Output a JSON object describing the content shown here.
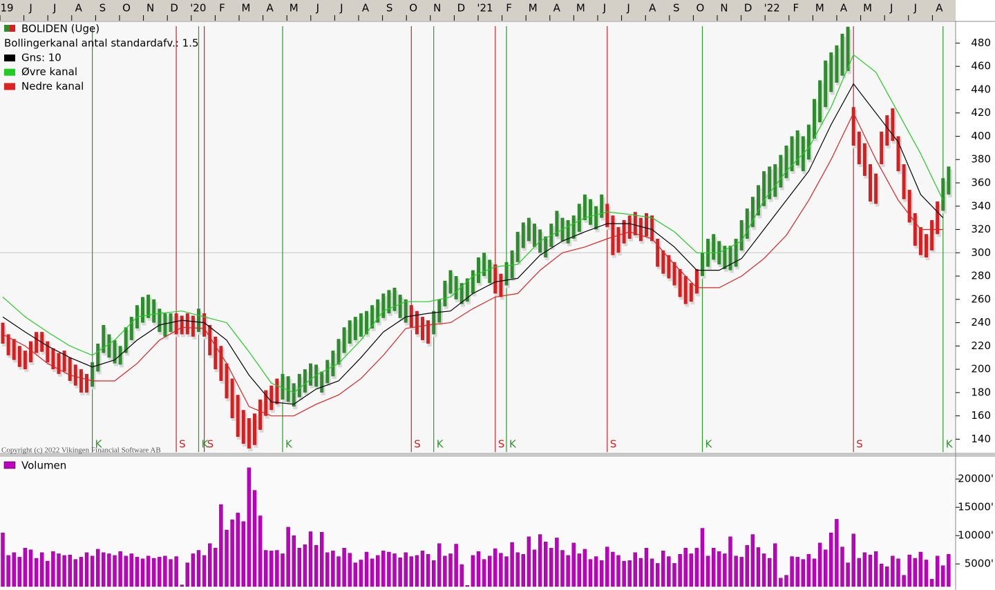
{
  "chart_data": [
    {
      "type": "hilo",
      "title": "BOLIDEN (Uge)",
      "subtitle": "Bollingerkanal antal standardafv.: 1.5",
      "copyright": "Copyright (c) 2022 Vikingen Financial Software AB",
      "x_labels": [
        "19",
        "J",
        "J",
        "A",
        "S",
        "O",
        "N",
        "D",
        "'20",
        "F",
        "M",
        "A",
        "M",
        "J",
        "J",
        "A",
        "S",
        "O",
        "N",
        "D",
        "'21",
        "F",
        "M",
        "A",
        "M",
        "J",
        "J",
        "A",
        "S",
        "O",
        "N",
        "D",
        "'22",
        "F",
        "M",
        "A",
        "M",
        "J",
        "J",
        "A"
      ],
      "up_color": "#2e8b2e",
      "down_color": "#d42020",
      "ylim": [
        129,
        498
      ],
      "yticks": [
        140,
        160,
        180,
        200,
        220,
        240,
        260,
        280,
        300,
        320,
        340,
        360,
        380,
        400,
        420,
        440,
        460,
        480
      ],
      "ref_line": 300,
      "bars": [
        [
          222,
          240
        ],
        [
          212,
          230
        ],
        [
          208,
          226
        ],
        [
          202,
          220
        ],
        [
          200,
          216
        ],
        [
          206,
          224
        ],
        [
          214,
          232
        ],
        [
          215,
          232
        ],
        [
          206,
          224
        ],
        [
          200,
          218
        ],
        [
          196,
          214
        ],
        [
          198,
          216
        ],
        [
          190,
          210
        ],
        [
          186,
          204
        ],
        [
          180,
          200
        ],
        [
          180,
          196
        ],
        [
          185,
          206
        ],
        [
          198,
          222
        ],
        [
          214,
          238
        ],
        [
          210,
          230
        ],
        [
          205,
          225
        ],
        [
          204,
          220
        ],
        [
          214,
          236
        ],
        [
          225,
          245
        ],
        [
          235,
          255
        ],
        [
          240,
          262
        ],
        [
          244,
          264
        ],
        [
          240,
          260
        ],
        [
          232,
          252
        ],
        [
          228,
          248
        ],
        [
          232,
          248
        ],
        [
          230,
          248
        ],
        [
          230,
          246
        ],
        [
          230,
          248
        ],
        [
          228,
          246
        ],
        [
          232,
          252
        ],
        [
          228,
          248
        ],
        [
          212,
          238
        ],
        [
          200,
          228
        ],
        [
          190,
          220
        ],
        [
          175,
          205
        ],
        [
          158,
          192
        ],
        [
          142,
          178
        ],
        [
          136,
          165
        ],
        [
          132,
          158
        ],
        [
          135,
          162
        ],
        [
          148,
          174
        ],
        [
          160,
          182
        ],
        [
          165,
          186
        ],
        [
          170,
          192
        ],
        [
          174,
          196
        ],
        [
          172,
          194
        ],
        [
          168,
          188
        ],
        [
          176,
          196
        ],
        [
          180,
          200
        ],
        [
          186,
          205
        ],
        [
          185,
          204
        ],
        [
          180,
          198
        ],
        [
          188,
          208
        ],
        [
          194,
          216
        ],
        [
          204,
          226
        ],
        [
          214,
          236
        ],
        [
          222,
          242
        ],
        [
          225,
          245
        ],
        [
          228,
          248
        ],
        [
          230,
          250
        ],
        [
          235,
          255
        ],
        [
          240,
          260
        ],
        [
          244,
          265
        ],
        [
          248,
          268
        ],
        [
          250,
          270
        ],
        [
          244,
          264
        ],
        [
          240,
          260
        ],
        [
          236,
          255
        ],
        [
          230,
          250
        ],
        [
          225,
          245
        ],
        [
          222,
          242
        ],
        [
          230,
          250
        ],
        [
          240,
          260
        ],
        [
          254,
          276
        ],
        [
          265,
          285
        ],
        [
          260,
          280
        ],
        [
          256,
          274
        ],
        [
          258,
          278
        ],
        [
          265,
          285
        ],
        [
          274,
          296
        ],
        [
          280,
          300
        ],
        [
          274,
          294
        ],
        [
          265,
          290
        ],
        [
          262,
          282
        ],
        [
          272,
          292
        ],
        [
          278,
          302
        ],
        [
          292,
          318
        ],
        [
          304,
          326
        ],
        [
          310,
          330
        ],
        [
          305,
          325
        ],
        [
          300,
          320
        ],
        [
          296,
          314
        ],
        [
          305,
          325
        ],
        [
          314,
          336
        ],
        [
          310,
          330
        ],
        [
          308,
          328
        ],
        [
          312,
          332
        ],
        [
          318,
          342
        ],
        [
          328,
          350
        ],
        [
          324,
          346
        ],
        [
          320,
          340
        ],
        [
          330,
          350
        ],
        [
          322,
          342
        ],
        [
          298,
          332
        ],
        [
          300,
          322
        ],
        [
          308,
          328
        ],
        [
          312,
          332
        ],
        [
          315,
          335
        ],
        [
          310,
          330
        ],
        [
          314,
          334
        ],
        [
          310,
          332
        ],
        [
          288,
          312
        ],
        [
          282,
          302
        ],
        [
          278,
          298
        ],
        [
          272,
          292
        ],
        [
          262,
          286
        ],
        [
          256,
          280
        ],
        [
          258,
          274
        ],
        [
          265,
          286
        ],
        [
          280,
          300
        ],
        [
          288,
          312
        ],
        [
          294,
          316
        ],
        [
          290,
          310
        ],
        [
          286,
          306
        ],
        [
          285,
          306
        ],
        [
          288,
          312
        ],
        [
          302,
          328
        ],
        [
          312,
          338
        ],
        [
          322,
          348
        ],
        [
          332,
          358
        ],
        [
          340,
          370
        ],
        [
          346,
          374
        ],
        [
          348,
          376
        ],
        [
          356,
          384
        ],
        [
          364,
          392
        ],
        [
          370,
          400
        ],
        [
          375,
          405
        ],
        [
          370,
          400
        ],
        [
          380,
          410
        ],
        [
          398,
          432
        ],
        [
          412,
          448
        ],
        [
          425,
          465
        ],
        [
          438,
          472
        ],
        [
          446,
          478
        ],
        [
          452,
          488
        ],
        [
          456,
          494
        ],
        [
          392,
          425
        ],
        [
          376,
          404
        ],
        [
          366,
          394
        ],
        [
          344,
          376
        ],
        [
          342,
          368
        ],
        [
          376,
          404
        ],
        [
          392,
          418
        ],
        [
          396,
          424
        ],
        [
          370,
          400
        ],
        [
          346,
          376
        ],
        [
          326,
          354
        ],
        [
          306,
          334
        ],
        [
          298,
          322
        ],
        [
          296,
          316
        ],
        [
          302,
          328
        ],
        [
          316,
          344
        ],
        [
          336,
          364
        ],
        [
          350,
          374
        ]
      ],
      "series": [
        {
          "name": "Gns: 10",
          "color": "#000000",
          "x": [
            0,
            4,
            8,
            12,
            16,
            20,
            24,
            28,
            32,
            36,
            40,
            44,
            48,
            52,
            56,
            60,
            64,
            68,
            72,
            76,
            80,
            84,
            88,
            92,
            96,
            100,
            104,
            108,
            112,
            116,
            120,
            124,
            128,
            132,
            136,
            140,
            144,
            148,
            152,
            156,
            160,
            164,
            168
          ],
          "values": [
            245,
            232,
            220,
            210,
            202,
            208,
            225,
            238,
            242,
            240,
            225,
            195,
            172,
            170,
            183,
            190,
            210,
            232,
            245,
            248,
            250,
            265,
            275,
            278,
            298,
            310,
            318,
            325,
            325,
            320,
            305,
            285,
            285,
            295,
            320,
            345,
            370,
            410,
            445,
            420,
            395,
            350,
            330
          ]
        },
        {
          "name": "Øvre kanal",
          "color": "#22cc22",
          "x": [
            0,
            4,
            8,
            12,
            16,
            20,
            24,
            28,
            32,
            36,
            40,
            44,
            48,
            52,
            56,
            60,
            64,
            68,
            72,
            76,
            80,
            84,
            88,
            92,
            96,
            100,
            104,
            108,
            112,
            116,
            120,
            124,
            128,
            132,
            136,
            140,
            144,
            148,
            152,
            156,
            160,
            164,
            168
          ],
          "values": [
            262,
            245,
            232,
            220,
            212,
            225,
            245,
            248,
            250,
            245,
            240,
            215,
            188,
            180,
            195,
            205,
            225,
            250,
            258,
            258,
            262,
            280,
            288,
            290,
            310,
            320,
            330,
            335,
            333,
            330,
            318,
            300,
            300,
            310,
            345,
            370,
            390,
            425,
            470,
            455,
            420,
            385,
            345
          ]
        },
        {
          "name": "Nedre kanal",
          "color": "#dd2222",
          "x": [
            0,
            4,
            8,
            12,
            16,
            20,
            24,
            28,
            32,
            36,
            40,
            44,
            48,
            52,
            56,
            60,
            64,
            68,
            72,
            76,
            80,
            84,
            88,
            92,
            96,
            100,
            104,
            108,
            112,
            116,
            120,
            124,
            128,
            132,
            136,
            140,
            144,
            148,
            152,
            156,
            160,
            164,
            168
          ],
          "values": [
            230,
            220,
            205,
            195,
            190,
            190,
            205,
            225,
            236,
            235,
            205,
            168,
            160,
            160,
            170,
            178,
            192,
            212,
            235,
            238,
            240,
            252,
            262,
            265,
            285,
            300,
            305,
            312,
            318,
            312,
            290,
            270,
            270,
            280,
            295,
            315,
            345,
            380,
            420,
            380,
            345,
            320,
            320
          ]
        }
      ],
      "signals": [
        {
          "week": 16,
          "label": "K"
        },
        {
          "week": 31,
          "label": "S"
        },
        {
          "week": 35,
          "label": "K"
        },
        {
          "week": 36,
          "label": "S"
        },
        {
          "week": 50,
          "label": "K"
        },
        {
          "week": 73,
          "label": "S"
        },
        {
          "week": 77,
          "label": "K"
        },
        {
          "week": 88,
          "label": "S"
        },
        {
          "week": 90,
          "label": "K"
        },
        {
          "week": 108,
          "label": "S"
        },
        {
          "week": 125,
          "label": "K"
        },
        {
          "week": 152,
          "label": "S"
        },
        {
          "week": 168,
          "label": "K"
        }
      ]
    },
    {
      "type": "bar",
      "title": "Volumen",
      "color": "#c000c0",
      "ylim": [
        1000,
        23800
      ],
      "yticks": [
        {
          "value": 5000,
          "label": "5000'"
        },
        {
          "value": 10000,
          "label": "10000'"
        },
        {
          "value": 15000,
          "label": "15000'"
        },
        {
          "value": 20000,
          "label": "20000'"
        }
      ],
      "values": [
        10500,
        6500,
        7000,
        6200,
        7800,
        7500,
        6000,
        7000,
        5500,
        7200,
        6800,
        6500,
        6600,
        5800,
        6200,
        7000,
        6400,
        7600,
        7000,
        6800,
        6500,
        7200,
        6400,
        6800,
        6200,
        5900,
        6400,
        6000,
        6200,
        6400,
        5800,
        6300,
        1300,
        5200,
        6800,
        7400,
        6500,
        8600,
        7800,
        15500,
        11000,
        12800,
        14000,
        12500,
        22000,
        18000,
        13500,
        7400,
        7300,
        7400,
        6800,
        11500,
        10000,
        7800,
        8400,
        10700,
        8300,
        10600,
        7000,
        7300,
        6300,
        7800,
        6900,
        5200,
        5700,
        7100,
        5900,
        6500,
        7300,
        7100,
        6800,
        6100,
        7000,
        6300,
        6500,
        7300,
        6700,
        5600,
        8600,
        6400,
        6800,
        8500,
        4900,
        1200,
        6500,
        7200,
        5800,
        6400,
        7700,
        6900,
        6300,
        8800,
        7000,
        6700,
        9800,
        7500,
        10200,
        8900,
        7800,
        9600,
        7400,
        6500,
        8700,
        6800,
        7600,
        5800,
        6300,
        5600,
        8000,
        7100,
        6500,
        5500,
        5600,
        7000,
        6000,
        7800,
        5900,
        5100,
        7300,
        6300,
        5100,
        6700,
        7800,
        6800,
        7800,
        11300,
        6400,
        7800,
        7200,
        6800,
        9800,
        6400,
        6200,
        8300,
        10200,
        7900,
        6800,
        6000,
        8600,
        2500,
        3000,
        6300,
        6200,
        5800,
        6700,
        5900,
        8700,
        7500,
        10500,
        12900,
        8000,
        5200,
        10300,
        6000,
        7000,
        6600,
        7200,
        5000,
        4500,
        6400,
        5900,
        3000,
        6600,
        6000,
        7100,
        5700,
        2300,
        6400,
        4700,
        6700
      ]
    }
  ]
}
